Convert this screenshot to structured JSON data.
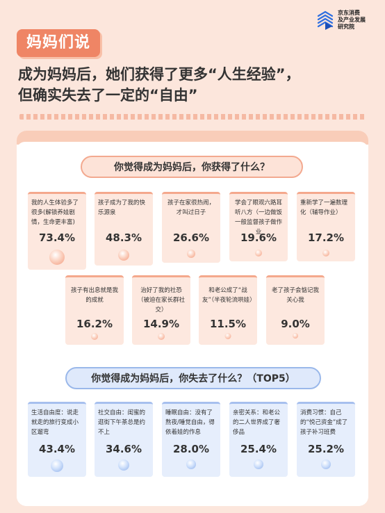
{
  "brand": {
    "lines": [
      "京东消费",
      "及产业发展",
      "研究院"
    ]
  },
  "tag": "妈妈们说",
  "headline": {
    "line1": "成为妈妈后，她们获得了更多“人生经验”，",
    "line2": "但确实失去了一定的“自由”"
  },
  "gain": {
    "question": "你觉得成为妈妈后，你获得了什么？",
    "items": [
      {
        "text": "我的人生体验多了很多(解锁养娃剧情，生命更丰富)",
        "pct": "73.4%"
      },
      {
        "text": "孩子成为了我的快乐源泉",
        "pct": "48.3%"
      },
      {
        "text": "孩子在家很热闹，才叫过日子",
        "pct": "26.6%"
      },
      {
        "text": "学会了眼观六路耳听八方（一边做饭一般监督孩子做作业",
        "pct": "19.6%"
      },
      {
        "text": "重新学了一遍数理化（辅导作业）",
        "pct": "17.2%"
      },
      {
        "text": "孩子有出息就是我的成就",
        "pct": "16.2%"
      },
      {
        "text": "治好了我的社恐（被迫在家长群社交）",
        "pct": "14.9%"
      },
      {
        "text": "和老公成了“战友”（半夜轮流哄娃）",
        "pct": "11.5%"
      },
      {
        "text": "老了孩子会惦记我关心我",
        "pct": "9.0%"
      }
    ]
  },
  "loss": {
    "question": "你觉得成为妈妈后，你失去了什么？（TOP5）",
    "items": [
      {
        "text": "生活自由度：说走就走的旅行变成小区遛弯",
        "pct": "43.4%"
      },
      {
        "text": "社交自由：闺蜜的逛街下午茶总是约不上",
        "pct": "34.6%"
      },
      {
        "text": "睡眠自由：没有了熬夜/睡觉自由，得依着娃的作息",
        "pct": "28.0%"
      },
      {
        "text": "亲密关系：和老公的二人世界成了奢侈品",
        "pct": "25.4%"
      },
      {
        "text": "消费习惯：自己的“悦己资金”成了孩子补习班费",
        "pct": "25.2%"
      }
    ]
  }
}
